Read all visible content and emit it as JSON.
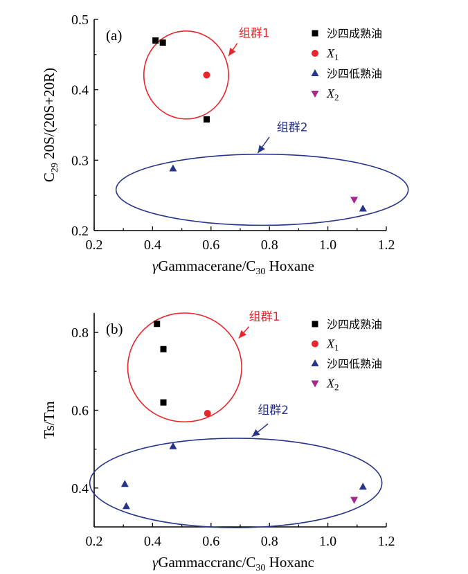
{
  "chart_data": [
    {
      "type": "scatter",
      "panel_label": "(a)",
      "xlabel_prefix": "γ",
      "xlabel_main": "Gammacerane/C",
      "xlabel_sub": "30",
      "xlabel_tail": " Hoxane",
      "ylabel_main": "C",
      "ylabel_sub": "29",
      "ylabel_tail": " 20S/(20S+20R)",
      "xlim": [
        0.2,
        1.2
      ],
      "ylim": [
        0.2,
        0.5
      ],
      "xticks": [
        "0.2",
        "0.4",
        "0.6",
        "0.8",
        "1.0",
        "1.2"
      ],
      "yticks": [
        "0.2",
        "0.3",
        "0.4",
        "0.5"
      ],
      "legend_position": "top-right",
      "series": [
        {
          "name": "沙四成熟油",
          "name_sub": "",
          "marker": "square",
          "color": "#000000",
          "x": [
            0.41,
            0.435,
            0.585
          ],
          "y": [
            0.47,
            0.467,
            0.358
          ]
        },
        {
          "name": "X",
          "name_sub": "1",
          "marker": "circle",
          "color": "#e8252a",
          "x": [
            0.585
          ],
          "y": [
            0.421
          ]
        },
        {
          "name": "沙四低熟油",
          "name_sub": "",
          "marker": "triangle-up",
          "color": "#27348b",
          "x": [
            0.47,
            1.12
          ],
          "y": [
            0.288,
            0.231
          ]
        },
        {
          "name": "X",
          "name_sub": "2",
          "marker": "triangle-down",
          "color": "#a5288e",
          "x": [
            1.09
          ],
          "y": [
            0.244
          ]
        }
      ],
      "groups": [
        {
          "label": "组群1",
          "color": "#e8252a",
          "cx": 0.515,
          "cy": 0.421,
          "rx": 0.145,
          "ry": 0.0625,
          "label_x": 0.695,
          "label_y": 0.475,
          "arrow_from": [
            0.69,
            0.466
          ],
          "arrow_to": [
            0.66,
            0.448
          ]
        },
        {
          "label": "组群2",
          "color": "#27348b",
          "cx": 0.775,
          "cy": 0.258,
          "rx": 0.5,
          "ry": 0.0505,
          "label_x": 0.825,
          "label_y": 0.341,
          "arrow_from": [
            0.8,
            0.333
          ],
          "arrow_to": [
            0.76,
            0.31
          ]
        }
      ]
    },
    {
      "type": "scatter",
      "panel_label": "(b)",
      "xlabel_prefix": "γ",
      "xlabel_main": "Gammaccranc/C",
      "xlabel_sub": "30",
      "xlabel_tail": " Hoxanc",
      "ylabel_main": "Ts/Tm",
      "ylabel_sub": "",
      "ylabel_tail": "",
      "xlim": [
        0.2,
        1.2
      ],
      "ylim": [
        0.3,
        0.85
      ],
      "xticks": [
        "0.2",
        "0.4",
        "0.6",
        "0.8",
        "1.0",
        "1.2"
      ],
      "yticks": [
        "0.4",
        "0.6",
        "0.8"
      ],
      "legend_position": "top-right",
      "series": [
        {
          "name": "沙四成熟油",
          "name_sub": "",
          "marker": "square",
          "color": "#000000",
          "x": [
            0.415,
            0.437,
            0.437
          ],
          "y": [
            0.822,
            0.757,
            0.62
          ]
        },
        {
          "name": "X",
          "name_sub": "1",
          "marker": "circle",
          "color": "#e8252a",
          "x": [
            0.588
          ],
          "y": [
            0.592
          ]
        },
        {
          "name": "沙四低熟油",
          "name_sub": "",
          "marker": "triangle-up",
          "color": "#27348b",
          "x": [
            0.47,
            0.305,
            0.31,
            1.12
          ],
          "y": [
            0.507,
            0.41,
            0.353,
            0.403
          ]
        },
        {
          "name": "X",
          "name_sub": "2",
          "marker": "triangle-down",
          "color": "#a5288e",
          "x": [
            1.09
          ],
          "y": [
            0.37
          ]
        }
      ],
      "groups": [
        {
          "label": "组群1",
          "color": "#e8252a",
          "cx": 0.51,
          "cy": 0.71,
          "rx": 0.195,
          "ry": 0.14,
          "label_x": 0.73,
          "label_y": 0.83,
          "arrow_from": [
            0.73,
            0.815
          ],
          "arrow_to": [
            0.695,
            0.785
          ]
        },
        {
          "label": "组群2",
          "color": "#27348b",
          "cx": 0.685,
          "cy": 0.413,
          "rx": 0.5,
          "ry": 0.115,
          "label_x": 0.76,
          "label_y": 0.59,
          "arrow_from": [
            0.795,
            0.565
          ],
          "arrow_to": [
            0.74,
            0.532
          ]
        }
      ]
    }
  ]
}
